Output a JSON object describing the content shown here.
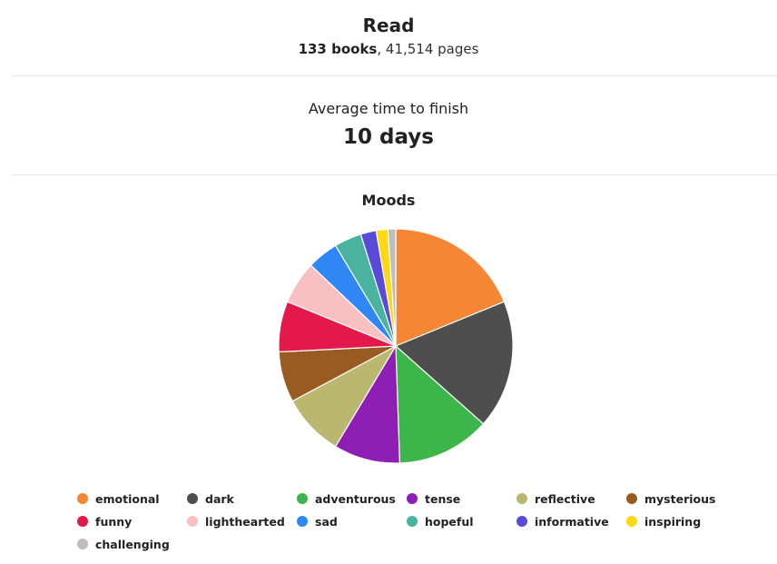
{
  "read": {
    "title": "Read",
    "books": "133 books",
    "pages": ", 41,514 pages"
  },
  "average": {
    "label": "Average time to finish",
    "value": "10 days"
  },
  "chart_data": {
    "type": "pie",
    "title": "Moods",
    "legend_position": "bottom",
    "categories": [
      "emotional",
      "dark",
      "adventurous",
      "tense",
      "reflective",
      "mysterious",
      "funny",
      "lighthearted",
      "sad",
      "hopeful",
      "informative",
      "inspiring",
      "challenging"
    ],
    "values": [
      35,
      33,
      24,
      17,
      16,
      13,
      13,
      11,
      8,
      7,
      4,
      3,
      2
    ],
    "colors": [
      "#f58634",
      "#4e4e4e",
      "#3cb54a",
      "#8e1eb4",
      "#bab76e",
      "#9a5b22",
      "#e3194b",
      "#f8c0c0",
      "#2f87f5",
      "#4ab3a0",
      "#5a4ad8",
      "#ffd815",
      "#bdbdbd"
    ]
  }
}
